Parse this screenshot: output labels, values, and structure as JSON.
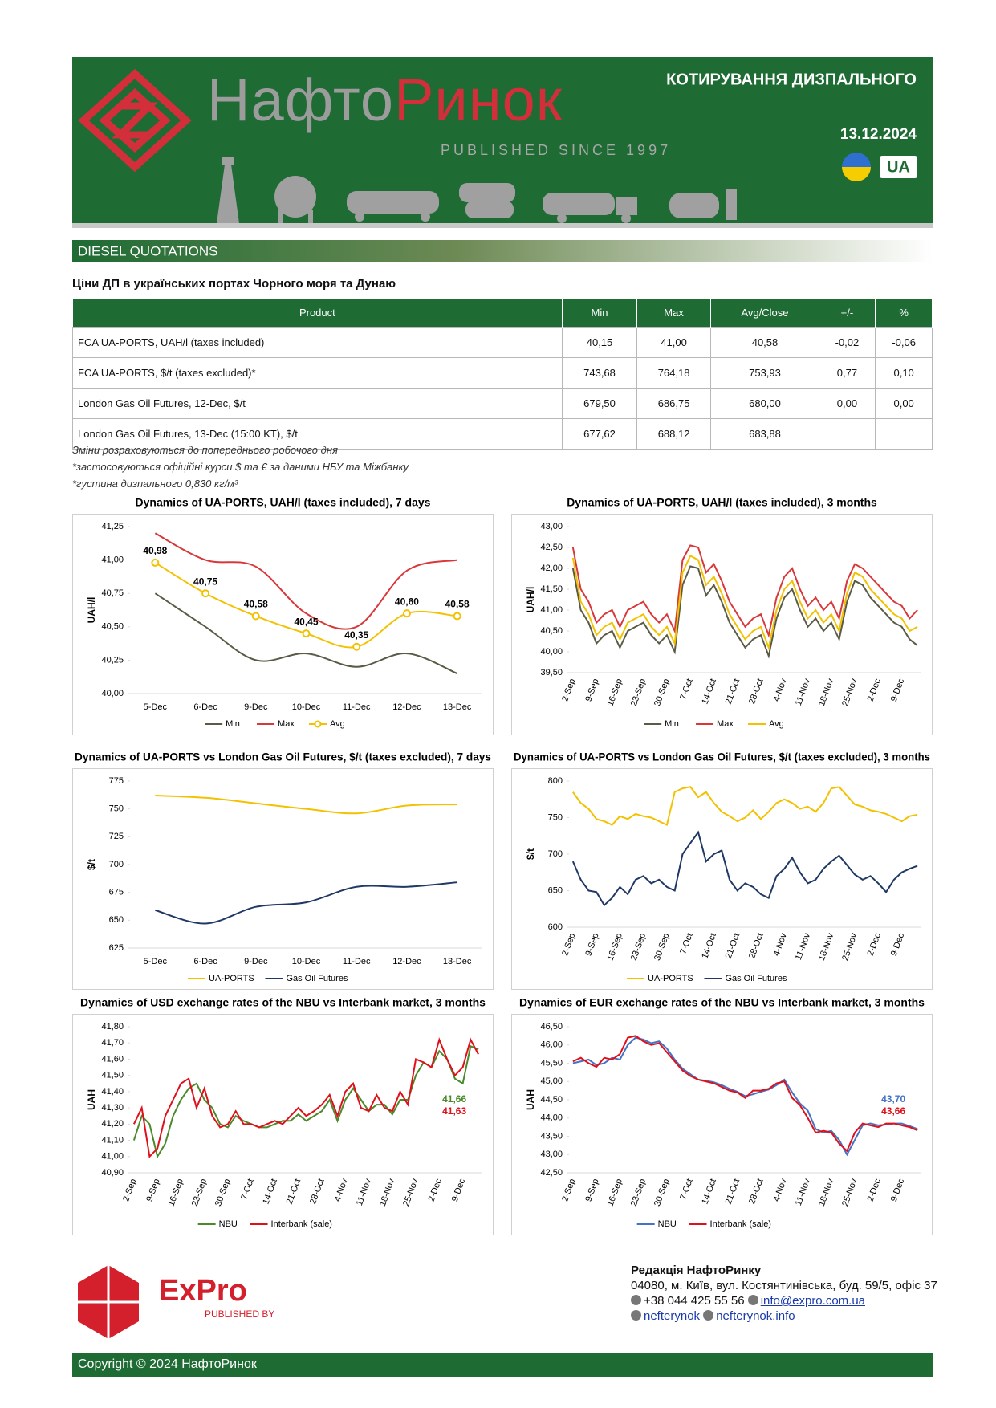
{
  "header": {
    "title": "КОТИРУВАННЯ ДИЗПАЛЬНОГО",
    "date": "13.12.2024",
    "lang": "UA",
    "brand_left": "Нафто",
    "brand_right": "Ринок",
    "tagline": "PUBLISHED SINCE 1997"
  },
  "section": "DIESEL QUOTATIONS",
  "table": {
    "title": "Ціни ДП в українських портах Чорного моря та Дунаю",
    "columns": [
      "Product",
      "Min",
      "Max",
      "Avg/Close",
      "+/-",
      "%"
    ],
    "rows": [
      [
        "FCA UA-PORTS, UAH/l (taxes included)",
        "40,15",
        "41,00",
        "40,58",
        "-0,02",
        "-0,06"
      ],
      [
        "FCA UA-PORTS, $/t (taxes excluded)*",
        "743,68",
        "764,18",
        "753,93",
        "0,77",
        "0,10"
      ],
      [
        "London Gas Oil Futures, 12-Dec, $/t",
        "679,50",
        "686,75",
        "680,00",
        "0,00",
        "0,00"
      ],
      [
        "London Gas Oil Futures, 13-Dec (15:00 KT), $/t",
        "677,62",
        "688,12",
        "683,88",
        null,
        null
      ]
    ]
  },
  "notes": [
    "Зміни розраховуються до попереднього робочого дня",
    "*застосовуються офіційні курси $ та € за даними НБУ та Міжбанку",
    "*густина дизпального 0,830 кг/м³"
  ],
  "chart_data": [
    {
      "type": "line",
      "title": "Dynamics of UA-PORTS, UAH/l (taxes included), 7 days",
      "y_label": "UAH/l",
      "smooth": true,
      "categories": [
        "5-Dec",
        "6-Dec",
        "9-Dec",
        "10-Dec",
        "11-Dec",
        "12-Dec",
        "13-Dec"
      ],
      "series": [
        {
          "name": "Min",
          "color": "#5b5b45",
          "values": [
            40.75,
            40.5,
            40.25,
            40.3,
            40.2,
            40.3,
            40.15
          ]
        },
        {
          "name": "Max",
          "color": "#d9383a",
          "values": [
            41.2,
            41.0,
            40.95,
            40.6,
            40.5,
            40.92,
            41.0
          ]
        },
        {
          "name": "Avg",
          "color": "#f2c200",
          "marker": true,
          "values": [
            40.98,
            40.75,
            40.58,
            40.45,
            40.35,
            40.6,
            40.58
          ],
          "value_labels": [
            "40,98",
            "40,75",
            "40,58",
            "40,45",
            "40,35",
            "40,60",
            "40,58"
          ]
        }
      ],
      "ylim": [
        40.0,
        41.25
      ],
      "yticks": [
        {
          "value": 40.0,
          "label": "40,00"
        },
        {
          "value": 40.25,
          "label": "40,25"
        },
        {
          "value": 40.5,
          "label": "40,50"
        },
        {
          "value": 40.75,
          "label": "40,75"
        },
        {
          "value": 41.0,
          "label": "41,00"
        },
        {
          "value": 41.25,
          "label": "41,25"
        }
      ]
    },
    {
      "type": "line",
      "title": "Dynamics of UA-PORTS, UAH/l (taxes included), 3 months",
      "y_label": "UAH/l",
      "smooth": false,
      "categories": [
        "2-Sep",
        null,
        null,
        "9-Sep",
        null,
        null,
        "16-Sep",
        null,
        null,
        "23-Sep",
        null,
        null,
        "30-Sep",
        null,
        null,
        "7-Oct",
        null,
        null,
        "14-Oct",
        null,
        null,
        "21-Oct",
        null,
        null,
        "28-Oct",
        null,
        null,
        "4-Nov",
        null,
        null,
        "11-Nov",
        null,
        null,
        "18-Nov",
        null,
        null,
        "25-Nov",
        null,
        null,
        "2-Dec",
        null,
        null,
        "9-Dec",
        null,
        null
      ],
      "series": [
        {
          "name": "Min",
          "color": "#5b5b45",
          "values": [
            42.0,
            41.0,
            40.7,
            40.2,
            40.4,
            40.5,
            40.1,
            40.5,
            40.6,
            40.7,
            40.4,
            40.2,
            40.4,
            40.0,
            41.6,
            42.05,
            42.0,
            41.35,
            41.6,
            41.2,
            40.7,
            40.4,
            40.1,
            40.3,
            40.4,
            39.9,
            40.8,
            41.3,
            41.5,
            41.0,
            40.6,
            40.8,
            40.5,
            40.7,
            40.3,
            41.2,
            41.7,
            41.6,
            41.3,
            41.1,
            40.9,
            40.7,
            40.6,
            40.3,
            40.15
          ]
        },
        {
          "name": "Max",
          "color": "#d9383a",
          "values": [
            42.5,
            41.5,
            41.2,
            40.7,
            40.9,
            41.0,
            40.6,
            41.0,
            41.1,
            41.2,
            40.9,
            40.7,
            40.9,
            40.5,
            42.2,
            42.55,
            42.5,
            41.9,
            42.1,
            41.7,
            41.2,
            40.9,
            40.6,
            40.8,
            40.9,
            40.4,
            41.3,
            41.8,
            42.0,
            41.5,
            41.1,
            41.3,
            41.0,
            41.2,
            40.8,
            41.7,
            42.1,
            42.0,
            41.8,
            41.6,
            41.4,
            41.2,
            41.1,
            40.8,
            41.0
          ]
        },
        {
          "name": "Avg",
          "color": "#f2c200",
          "values": [
            42.25,
            41.2,
            40.9,
            40.4,
            40.6,
            40.7,
            40.3,
            40.7,
            40.8,
            40.9,
            40.6,
            40.4,
            40.6,
            40.2,
            41.9,
            42.3,
            42.2,
            41.6,
            41.8,
            41.4,
            40.9,
            40.6,
            40.3,
            40.5,
            40.6,
            40.1,
            41.0,
            41.5,
            41.7,
            41.2,
            40.8,
            41.0,
            40.7,
            40.9,
            40.5,
            41.4,
            41.9,
            41.8,
            41.5,
            41.3,
            41.1,
            40.9,
            40.8,
            40.5,
            40.6
          ]
        }
      ],
      "ylim": [
        39.5,
        43.0
      ],
      "yticks": [
        {
          "value": 39.5,
          "label": "39,50"
        },
        {
          "value": 40.0,
          "label": "40,00"
        },
        {
          "value": 40.5,
          "label": "40,50"
        },
        {
          "value": 41.0,
          "label": "41,00"
        },
        {
          "value": 41.5,
          "label": "41,50"
        },
        {
          "value": 42.0,
          "label": "42,00"
        },
        {
          "value": 42.5,
          "label": "42,50"
        },
        {
          "value": 43.0,
          "label": "43,00"
        }
      ]
    },
    {
      "type": "line",
      "title": "Dynamics of UA-PORTS vs London Gas Oil Futures, $/t (taxes excluded), 7 days",
      "y_label": "$/t",
      "smooth": true,
      "categories": [
        "5-Dec",
        "6-Dec",
        "9-Dec",
        "10-Dec",
        "11-Dec",
        "12-Dec",
        "13-Dec"
      ],
      "series": [
        {
          "name": "UA-PORTS",
          "color": "#f2c200",
          "values": [
            762,
            760,
            755,
            750,
            746,
            753,
            754
          ]
        },
        {
          "name": "Gas Oil Futures",
          "color": "#1f3864",
          "values": [
            659,
            647,
            662,
            666,
            680,
            680,
            684
          ]
        }
      ],
      "ylim": [
        625,
        775
      ],
      "yticks": [
        625,
        650,
        675,
        700,
        725,
        750,
        775
      ]
    },
    {
      "type": "line",
      "title": "Dynamics of UA-PORTS vs London Gas Oil Futures, $/t (taxes excluded), 3 months",
      "y_label": "$/t",
      "smooth": false,
      "categories": [
        "2-Sep",
        null,
        null,
        "9-Sep",
        null,
        null,
        "16-Sep",
        null,
        null,
        "23-Sep",
        null,
        null,
        "30-Sep",
        null,
        null,
        "7-Oct",
        null,
        null,
        "14-Oct",
        null,
        null,
        "21-Oct",
        null,
        null,
        "28-Oct",
        null,
        null,
        "4-Nov",
        null,
        null,
        "11-Nov",
        null,
        null,
        "18-Nov",
        null,
        null,
        "25-Nov",
        null,
        null,
        "2-Dec",
        null,
        null,
        "9-Dec",
        null,
        null
      ],
      "series": [
        {
          "name": "UA-PORTS",
          "color": "#f2c200",
          "values": [
            785,
            770,
            762,
            748,
            745,
            740,
            752,
            748,
            755,
            752,
            750,
            745,
            740,
            785,
            790,
            792,
            778,
            785,
            770,
            758,
            752,
            745,
            750,
            760,
            748,
            758,
            770,
            775,
            770,
            762,
            765,
            758,
            770,
            790,
            792,
            780,
            768,
            765,
            760,
            758,
            755,
            750,
            745,
            752,
            754
          ]
        },
        {
          "name": "Gas Oil Futures",
          "color": "#1f3864",
          "values": [
            690,
            665,
            650,
            648,
            630,
            640,
            655,
            645,
            665,
            670,
            660,
            665,
            655,
            650,
            700,
            715,
            730,
            690,
            700,
            705,
            665,
            650,
            660,
            655,
            645,
            640,
            670,
            680,
            695,
            675,
            660,
            665,
            680,
            690,
            698,
            685,
            672,
            665,
            670,
            660,
            648,
            665,
            675,
            680,
            684
          ]
        }
      ],
      "ylim": [
        600,
        800
      ],
      "yticks": [
        600,
        650,
        700,
        750,
        800
      ]
    },
    {
      "type": "line",
      "title": "Dynamics of USD exchange rates of the NBU vs Interbank market, 3 months",
      "y_label": "UAH",
      "smooth": false,
      "categories": [
        "2-Sep",
        null,
        null,
        "9-Sep",
        null,
        null,
        "16-Sep",
        null,
        null,
        "23-Sep",
        null,
        null,
        "30-Sep",
        null,
        null,
        "7-Oct",
        null,
        null,
        "14-Oct",
        null,
        null,
        "21-Oct",
        null,
        null,
        "28-Oct",
        null,
        null,
        "4-Nov",
        null,
        null,
        "11-Nov",
        null,
        null,
        "18-Nov",
        null,
        null,
        "25-Nov",
        null,
        null,
        "2-Dec",
        null,
        null,
        "9-Dec",
        null,
        null
      ],
      "series": [
        {
          "name": "NBU",
          "color": "#4a8a2a",
          "last_label": "41,66",
          "values": [
            41.1,
            41.25,
            41.2,
            41.0,
            41.08,
            41.25,
            41.35,
            41.42,
            41.45,
            41.35,
            41.3,
            41.2,
            41.18,
            41.25,
            41.22,
            41.2,
            41.18,
            41.18,
            41.2,
            41.22,
            41.22,
            41.26,
            41.22,
            41.25,
            41.28,
            41.35,
            41.22,
            41.35,
            41.42,
            41.35,
            41.28,
            41.32,
            41.32,
            41.26,
            41.35,
            41.35,
            41.5,
            41.58,
            41.55,
            41.65,
            41.6,
            41.48,
            41.45,
            41.68,
            41.66
          ]
        },
        {
          "name": "Interbank (sale)",
          "color": "#e0101a",
          "last_label": "41,63",
          "values": [
            41.2,
            41.3,
            41.0,
            41.05,
            41.25,
            41.35,
            41.45,
            41.48,
            41.3,
            41.42,
            41.25,
            41.18,
            41.2,
            41.28,
            41.2,
            41.2,
            41.18,
            41.2,
            41.22,
            41.2,
            41.25,
            41.3,
            41.25,
            41.28,
            41.32,
            41.38,
            41.25,
            41.4,
            41.45,
            41.3,
            41.28,
            41.38,
            41.3,
            41.28,
            41.4,
            41.32,
            41.6,
            41.58,
            41.55,
            41.72,
            41.6,
            41.5,
            41.55,
            41.72,
            41.63
          ]
        }
      ],
      "ylim": [
        40.9,
        41.8
      ],
      "yticks": [
        {
          "value": 40.9,
          "label": "40,90"
        },
        {
          "value": 41.0,
          "label": "41,00"
        },
        {
          "value": 41.1,
          "label": "41,10"
        },
        {
          "value": 41.2,
          "label": "41,20"
        },
        {
          "value": 41.3,
          "label": "41,30"
        },
        {
          "value": 41.4,
          "label": "41,40"
        },
        {
          "value": 41.5,
          "label": "41,50"
        },
        {
          "value": 41.6,
          "label": "41,60"
        },
        {
          "value": 41.7,
          "label": "41,70"
        },
        {
          "value": 41.8,
          "label": "41,80"
        }
      ]
    },
    {
      "type": "line",
      "title": "Dynamics of EUR exchange rates of the NBU vs Interbank market, 3 months",
      "y_label": "UAH",
      "smooth": false,
      "categories": [
        "2-Sep",
        null,
        null,
        "9-Sep",
        null,
        null,
        "16-Sep",
        null,
        null,
        "23-Sep",
        null,
        null,
        "30-Sep",
        null,
        null,
        "7-Oct",
        null,
        null,
        "14-Oct",
        null,
        null,
        "21-Oct",
        null,
        null,
        "28-Oct",
        null,
        null,
        "4-Nov",
        null,
        null,
        "11-Nov",
        null,
        null,
        "18-Nov",
        null,
        null,
        "25-Nov",
        null,
        null,
        "2-Dec",
        null,
        null,
        "9-Dec",
        null,
        null
      ],
      "series": [
        {
          "name": "NBU",
          "color": "#4472c4",
          "last_label": "43,70",
          "values": [
            45.5,
            45.55,
            45.6,
            45.45,
            45.5,
            45.65,
            45.6,
            46.0,
            46.2,
            46.15,
            46.05,
            46.1,
            45.9,
            45.6,
            45.35,
            45.2,
            45.05,
            45.02,
            44.98,
            44.9,
            44.8,
            44.72,
            44.6,
            44.65,
            44.72,
            44.78,
            44.9,
            45.05,
            44.7,
            44.4,
            44.2,
            43.7,
            43.6,
            43.65,
            43.4,
            43.0,
            43.4,
            43.8,
            43.85,
            43.8,
            43.82,
            43.85,
            43.85,
            43.78,
            43.7
          ]
        },
        {
          "name": "Interbank (sale)",
          "color": "#e0101a",
          "last_label": "43,66",
          "values": [
            45.55,
            45.65,
            45.5,
            45.4,
            45.65,
            45.6,
            45.75,
            46.2,
            46.25,
            46.1,
            46.0,
            46.05,
            45.8,
            45.55,
            45.3,
            45.15,
            45.05,
            45.0,
            44.95,
            44.85,
            44.75,
            44.7,
            44.55,
            44.75,
            44.75,
            44.8,
            44.95,
            45.0,
            44.55,
            44.35,
            44.0,
            43.6,
            43.65,
            43.6,
            43.3,
            43.1,
            43.6,
            43.85,
            43.8,
            43.75,
            43.85,
            43.85,
            43.8,
            43.75,
            43.66
          ]
        }
      ],
      "ylim": [
        42.5,
        46.5
      ],
      "yticks": [
        {
          "value": 42.5,
          "label": "42,50"
        },
        {
          "value": 43.0,
          "label": "43,00"
        },
        {
          "value": 43.5,
          "label": "43,50"
        },
        {
          "value": 44.0,
          "label": "44,00"
        },
        {
          "value": 44.5,
          "label": "44,50"
        },
        {
          "value": 45.0,
          "label": "45,00"
        },
        {
          "value": 45.5,
          "label": "45,50"
        },
        {
          "value": 46.0,
          "label": "46,00"
        },
        {
          "value": 46.5,
          "label": "46,50"
        }
      ]
    }
  ],
  "publisher": {
    "brand": "ExPro",
    "tagline": "PUBLISHED BY"
  },
  "contacts": {
    "title": "Редакція НафтоРинку",
    "address": "04080, м. Київ, вул. Костянтинівська, буд. 59/5, офіс 37",
    "phone": "+38 044 425 55 56",
    "email": "info@expro.com.ua",
    "facebook": "nefterynok",
    "site": "nefterynok.info"
  },
  "copyright": "Copyright © 2024 НафтоРинок"
}
